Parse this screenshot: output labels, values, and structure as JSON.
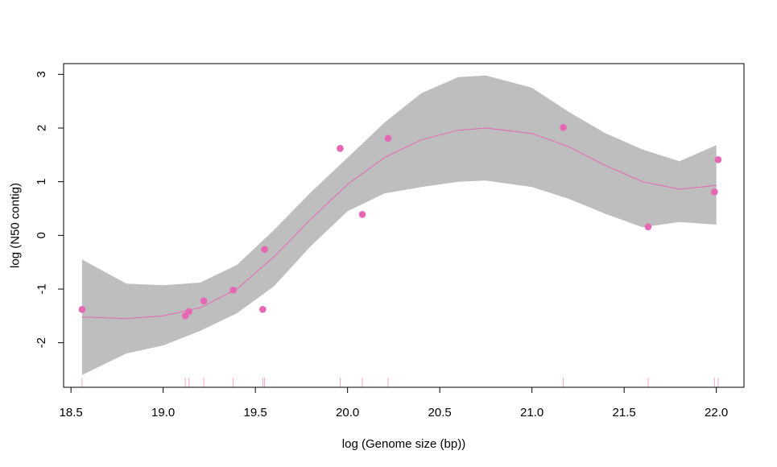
{
  "chart_data": {
    "type": "scatter",
    "xlabel": "log (Genome size (bp))",
    "ylabel": "log (N50 contig)",
    "xlim": [
      18.46,
      22.15
    ],
    "ylim": [
      -2.83,
      3.2
    ],
    "x_ticks": [
      "18.5",
      "19.0",
      "19.5",
      "20.0",
      "20.5",
      "21.0",
      "21.5",
      "22.0"
    ],
    "y_ticks": [
      "-2",
      "-1",
      "0",
      "1",
      "2",
      "3"
    ],
    "point_color": "#e667b4",
    "band_color": "#bebebe",
    "points": [
      {
        "x": 18.56,
        "y": -1.38
      },
      {
        "x": 19.12,
        "y": -1.5
      },
      {
        "x": 19.14,
        "y": -1.42
      },
      {
        "x": 19.22,
        "y": -1.22
      },
      {
        "x": 19.38,
        "y": -1.02
      },
      {
        "x": 19.54,
        "y": -1.38
      },
      {
        "x": 19.55,
        "y": -0.26
      },
      {
        "x": 19.96,
        "y": 1.62
      },
      {
        "x": 20.08,
        "y": 0.39
      },
      {
        "x": 20.22,
        "y": 1.81
      },
      {
        "x": 21.17,
        "y": 2.01
      },
      {
        "x": 21.63,
        "y": 0.16
      },
      {
        "x": 21.99,
        "y": 0.81
      },
      {
        "x": 22.01,
        "y": 1.41
      }
    ],
    "smooth_fit": [
      {
        "x": 18.56,
        "y": -1.52
      },
      {
        "x": 18.8,
        "y": -1.55
      },
      {
        "x": 19.0,
        "y": -1.5
      },
      {
        "x": 19.2,
        "y": -1.35
      },
      {
        "x": 19.4,
        "y": -1.0
      },
      {
        "x": 19.6,
        "y": -0.4
      },
      {
        "x": 19.8,
        "y": 0.3
      },
      {
        "x": 20.0,
        "y": 0.95
      },
      {
        "x": 20.2,
        "y": 1.45
      },
      {
        "x": 20.4,
        "y": 1.78
      },
      {
        "x": 20.6,
        "y": 1.96
      },
      {
        "x": 20.75,
        "y": 2.0
      },
      {
        "x": 21.0,
        "y": 1.9
      },
      {
        "x": 21.2,
        "y": 1.65
      },
      {
        "x": 21.4,
        "y": 1.3
      },
      {
        "x": 21.6,
        "y": 1.0
      },
      {
        "x": 21.8,
        "y": 0.86
      },
      {
        "x": 22.0,
        "y": 0.93
      }
    ],
    "band_upper": [
      {
        "x": 18.56,
        "y": -0.45
      },
      {
        "x": 18.8,
        "y": -0.9
      },
      {
        "x": 19.0,
        "y": -0.93
      },
      {
        "x": 19.2,
        "y": -0.88
      },
      {
        "x": 19.4,
        "y": -0.55
      },
      {
        "x": 19.6,
        "y": 0.1
      },
      {
        "x": 19.8,
        "y": 0.8
      },
      {
        "x": 20.0,
        "y": 1.45
      },
      {
        "x": 20.2,
        "y": 2.1
      },
      {
        "x": 20.4,
        "y": 2.65
      },
      {
        "x": 20.6,
        "y": 2.95
      },
      {
        "x": 20.75,
        "y": 2.98
      },
      {
        "x": 21.0,
        "y": 2.75
      },
      {
        "x": 21.2,
        "y": 2.3
      },
      {
        "x": 21.4,
        "y": 1.9
      },
      {
        "x": 21.6,
        "y": 1.6
      },
      {
        "x": 21.8,
        "y": 1.38
      },
      {
        "x": 22.0,
        "y": 1.68
      }
    ],
    "band_lower": [
      {
        "x": 18.56,
        "y": -2.6
      },
      {
        "x": 18.8,
        "y": -2.2
      },
      {
        "x": 19.0,
        "y": -2.05
      },
      {
        "x": 19.2,
        "y": -1.78
      },
      {
        "x": 19.4,
        "y": -1.45
      },
      {
        "x": 19.6,
        "y": -0.95
      },
      {
        "x": 19.8,
        "y": -0.2
      },
      {
        "x": 20.0,
        "y": 0.45
      },
      {
        "x": 20.2,
        "y": 0.78
      },
      {
        "x": 20.4,
        "y": 0.9
      },
      {
        "x": 20.6,
        "y": 1.0
      },
      {
        "x": 20.75,
        "y": 1.02
      },
      {
        "x": 21.0,
        "y": 0.9
      },
      {
        "x": 21.2,
        "y": 0.68
      },
      {
        "x": 21.4,
        "y": 0.4
      },
      {
        "x": 21.6,
        "y": 0.15
      },
      {
        "x": 21.8,
        "y": 0.25
      },
      {
        "x": 22.0,
        "y": 0.2
      }
    ],
    "rug": true,
    "grid": false,
    "legend": "none"
  }
}
